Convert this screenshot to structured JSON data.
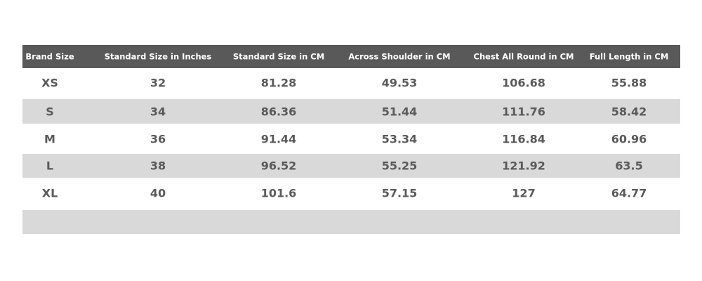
{
  "table": {
    "header": [
      "Brand Size",
      "Standard Size in Inches",
      "Standard Size in CM",
      "Across Shoulder in CM",
      "Chest All Round in CM",
      "Full Length in CM"
    ],
    "rows": [
      [
        "XS",
        "32",
        "81.28",
        "49.53",
        "106.68",
        "55.88"
      ],
      [
        "S",
        "34",
        "86.36",
        "51.44",
        "111.76",
        "58.42"
      ],
      [
        "M",
        "36",
        "91.44",
        "53.34",
        "116.84",
        "60.96"
      ],
      [
        "L",
        "38",
        "96.52",
        "55.25",
        "121.92",
        "63.5"
      ],
      [
        "XL",
        "40",
        "101.6",
        "57.15",
        "127",
        "64.77"
      ]
    ]
  }
}
